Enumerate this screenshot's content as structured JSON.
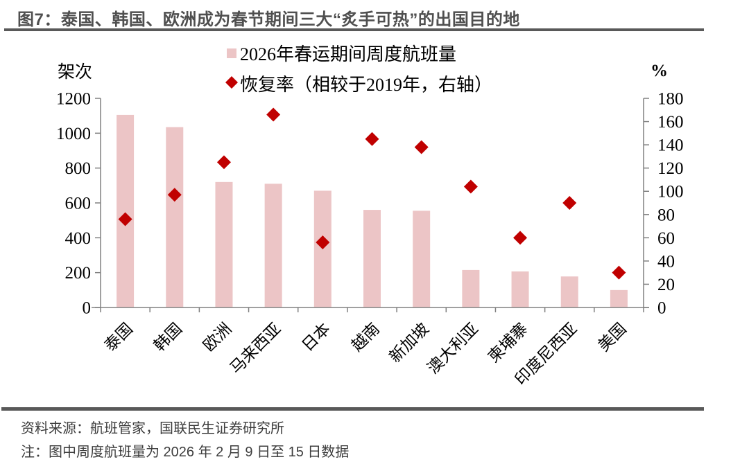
{
  "figure": {
    "title": "图7：泰国、韩国、欧洲成为春节期间三大“炙手可热”的出国目的地",
    "source": "资料来源：航班管家，国联民生证券研究所",
    "note": "注：图中周度航班量为 2026 年 2 月 9 日至 15 日数据"
  },
  "colors": {
    "bar_fill": "#ecc5c6",
    "diamond_fill": "#c00000",
    "axis_line": "#808080",
    "tick_text": "#000000",
    "rule_dark_gray": "#595959",
    "title_text": "#4f4f4f"
  },
  "chart_data": {
    "type": "bar",
    "categories": [
      "泰国",
      "韩国",
      "欧洲",
      "马来西亚",
      "日本",
      "越南",
      "新加坡",
      "澳大利亚",
      "柬埔寨",
      "印度尼西亚",
      "美国"
    ],
    "series": [
      {
        "name": "2026年春运期间周度航班量",
        "type": "bar",
        "axis": "left",
        "color": "#ecc5c6",
        "values": [
          1105,
          1035,
          720,
          710,
          670,
          560,
          555,
          215,
          207,
          178,
          100
        ]
      },
      {
        "name": "恢复率（相较于2019年，右轴）",
        "type": "scatter",
        "marker": "diamond",
        "axis": "right",
        "color": "#c00000",
        "values": [
          76,
          97,
          125,
          166,
          56,
          145,
          138,
          104,
          60,
          90,
          30
        ]
      }
    ],
    "left_axis": {
      "label": "架次",
      "min": 0,
      "max": 1200,
      "step": 200
    },
    "right_axis": {
      "label": "%",
      "min": 0,
      "max": 180,
      "step": 20
    },
    "legend_position": "top-center",
    "grid": false
  }
}
